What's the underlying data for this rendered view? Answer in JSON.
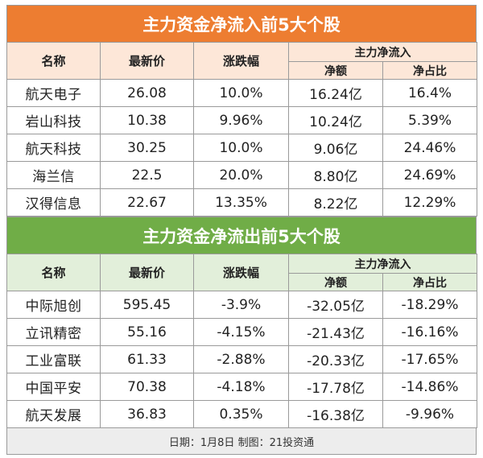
{
  "inflow": {
    "title": "主力资金净流入前5大个股",
    "headers": {
      "name": "名称",
      "price": "最新价",
      "change": "涨跌幅",
      "group": "主力净流入",
      "net": "净额",
      "ratio": "净占比"
    },
    "rows": [
      {
        "name": "航天电子",
        "price": "26.08",
        "change": "10.0%",
        "net": "16.24亿",
        "ratio": "16.4%"
      },
      {
        "name": "岩山科技",
        "price": "10.38",
        "change": "9.96%",
        "net": "10.24亿",
        "ratio": "5.39%"
      },
      {
        "name": "航天科技",
        "price": "30.25",
        "change": "10.0%",
        "net": "9.06亿",
        "ratio": "24.46%"
      },
      {
        "name": "海兰信",
        "price": "22.5",
        "change": "20.0%",
        "net": "8.80亿",
        "ratio": "24.69%"
      },
      {
        "name": "汉得信息",
        "price": "22.67",
        "change": "13.35%",
        "net": "8.22亿",
        "ratio": "12.29%"
      }
    ]
  },
  "outflow": {
    "title": "主力资金净流出前5大个股",
    "headers": {
      "name": "名称",
      "price": "最新价",
      "change": "涨跌幅",
      "group": "主力净流入",
      "net": "净额",
      "ratio": "净占比"
    },
    "rows": [
      {
        "name": "中际旭创",
        "price": "595.45",
        "change": "-3.9%",
        "net": "-32.05亿",
        "ratio": "-18.29%"
      },
      {
        "name": "立讯精密",
        "price": "55.16",
        "change": "-4.15%",
        "net": "-21.43亿",
        "ratio": "-16.16%"
      },
      {
        "name": "工业富联",
        "price": "61.33",
        "change": "-2.88%",
        "net": "-20.33亿",
        "ratio": "-17.65%"
      },
      {
        "name": "中国平安",
        "price": "70.38",
        "change": "-4.18%",
        "net": "-17.78亿",
        "ratio": "-14.86%"
      },
      {
        "name": "航天发展",
        "price": "36.83",
        "change": "0.35%",
        "net": "-16.38亿",
        "ratio": "-9.96%"
      }
    ]
  },
  "footer": "日期：1月8日 制图：21投资通",
  "colors": {
    "inflow_header": "#ed7d31",
    "outflow_header": "#70ad47",
    "inflow_sub": "#fde7d8",
    "outflow_sub": "#e2efda"
  }
}
